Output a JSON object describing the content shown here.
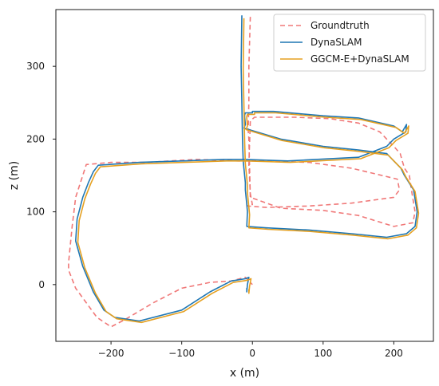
{
  "chart_data": {
    "type": "line",
    "title": "",
    "xlabel": "x (m)",
    "ylabel": "z (m)",
    "xlim": [
      -278,
      256
    ],
    "ylim": [
      -78,
      378
    ],
    "xticks": [
      -200,
      -100,
      0,
      100,
      200
    ],
    "yticks": [
      0,
      100,
      200,
      300
    ],
    "xtick_labels": [
      "−200",
      "−100",
      "0",
      "100",
      "200"
    ],
    "ytick_labels": [
      "0",
      "100",
      "200",
      "300"
    ],
    "grid": false,
    "legend": {
      "placement": "top-right"
    },
    "series": [
      {
        "name": "Groundtruth",
        "color": "#f07878",
        "style": "dashed",
        "x": [
          -3,
          -5,
          -5,
          -6,
          -5,
          -3,
          40,
          100,
          150,
          200,
          227,
          230,
          225,
          222,
          215,
          212,
          209,
          200,
          190,
          180,
          150,
          110,
          60,
          3,
          -3,
          -5,
          -3,
          0,
          -3,
          -7,
          20,
          80,
          140,
          200,
          208,
          205,
          140,
          80,
          20,
          -20,
          -80,
          -150,
          -200,
          -235,
          -240,
          -250,
          -255,
          -260,
          -260,
          -250,
          -235,
          -220,
          -200,
          -180,
          -140,
          -100,
          -60,
          -30,
          -10,
          -5,
          0
        ],
        "y": [
          368,
          300,
          250,
          212,
          200,
          120,
          105,
          102,
          95,
          80,
          85,
          100,
          130,
          150,
          160,
          170,
          180,
          190,
          200,
          210,
          222,
          228,
          230,
          230,
          225,
          165,
          125,
          110,
          110,
          108,
          106,
          108,
          112,
          120,
          130,
          145,
          160,
          168,
          170,
          170,
          172,
          168,
          168,
          165,
          150,
          120,
          80,
          30,
          20,
          -5,
          -25,
          -45,
          -58,
          -48,
          -25,
          -5,
          3,
          5,
          10,
          5,
          0
        ]
      },
      {
        "name": "DynaSLAM",
        "color": "#1f77b4",
        "style": "solid",
        "x": [
          -15,
          -16,
          -15,
          -14,
          -13,
          -11,
          -10,
          -10,
          -9,
          -8,
          -7,
          -8,
          20,
          80,
          140,
          190,
          218,
          230,
          233,
          228,
          215,
          210,
          200,
          190,
          150,
          100,
          40,
          -12,
          -10,
          -11,
          -11,
          -10,
          0,
          0,
          30,
          100,
          150,
          200,
          212,
          218,
          217,
          200,
          190,
          150,
          50,
          -10,
          -40,
          -100,
          -160,
          -218,
          -225,
          -232,
          -240,
          -248,
          -250,
          -240,
          -225,
          -210,
          -195,
          -160,
          -100,
          -60,
          -30,
          -10,
          -5,
          -7,
          -8,
          -8,
          -7
        ],
        "y": [
          370,
          300,
          250,
          200,
          170,
          150,
          140,
          130,
          120,
          110,
          100,
          80,
          78,
          75,
          70,
          65,
          70,
          80,
          100,
          130,
          150,
          160,
          170,
          180,
          185,
          190,
          200,
          215,
          220,
          230,
          233,
          236,
          236,
          238,
          238,
          232,
          229,
          218,
          210,
          220,
          210,
          200,
          190,
          175,
          170,
          172,
          172,
          170,
          168,
          164,
          155,
          140,
          120,
          90,
          60,
          25,
          -10,
          -35,
          -45,
          -50,
          -35,
          -10,
          5,
          8,
          10,
          0,
          -10,
          -5,
          -5
        ]
      },
      {
        "name": "GGCM-E+DynaSLAM",
        "color": "#e5a020",
        "style": "solid",
        "x": [
          -12,
          -13,
          -12,
          -11,
          -10,
          -8,
          -7,
          -7,
          -6,
          -5,
          -4,
          -5,
          22,
          82,
          142,
          192,
          220,
          232,
          235,
          230,
          217,
          212,
          202,
          192,
          152,
          102,
          42,
          -9,
          -7,
          -8,
          -8,
          -7,
          3,
          3,
          33,
          103,
          153,
          203,
          215,
          221,
          220,
          203,
          193,
          153,
          53,
          -7,
          -37,
          -97,
          -157,
          -215,
          -222,
          -229,
          -237,
          -245,
          -247,
          -237,
          -222,
          -207,
          -192,
          -157,
          -97,
          -57,
          -27,
          -7,
          -2,
          -4,
          -5,
          -5,
          -4
        ],
        "y": [
          366,
          296,
          246,
          196,
          166,
          146,
          136,
          126,
          116,
          106,
          96,
          78,
          76,
          73,
          68,
          63,
          68,
          78,
          98,
          128,
          148,
          158,
          168,
          178,
          183,
          188,
          198,
          213,
          218,
          228,
          231,
          234,
          234,
          236,
          236,
          230,
          227,
          216,
          208,
          218,
          208,
          198,
          188,
          173,
          168,
          170,
          170,
          168,
          166,
          162,
          153,
          138,
          118,
          88,
          58,
          23,
          -12,
          -37,
          -47,
          -52,
          -37,
          -12,
          3,
          6,
          8,
          -2,
          -12,
          -7,
          -7
        ]
      }
    ]
  }
}
